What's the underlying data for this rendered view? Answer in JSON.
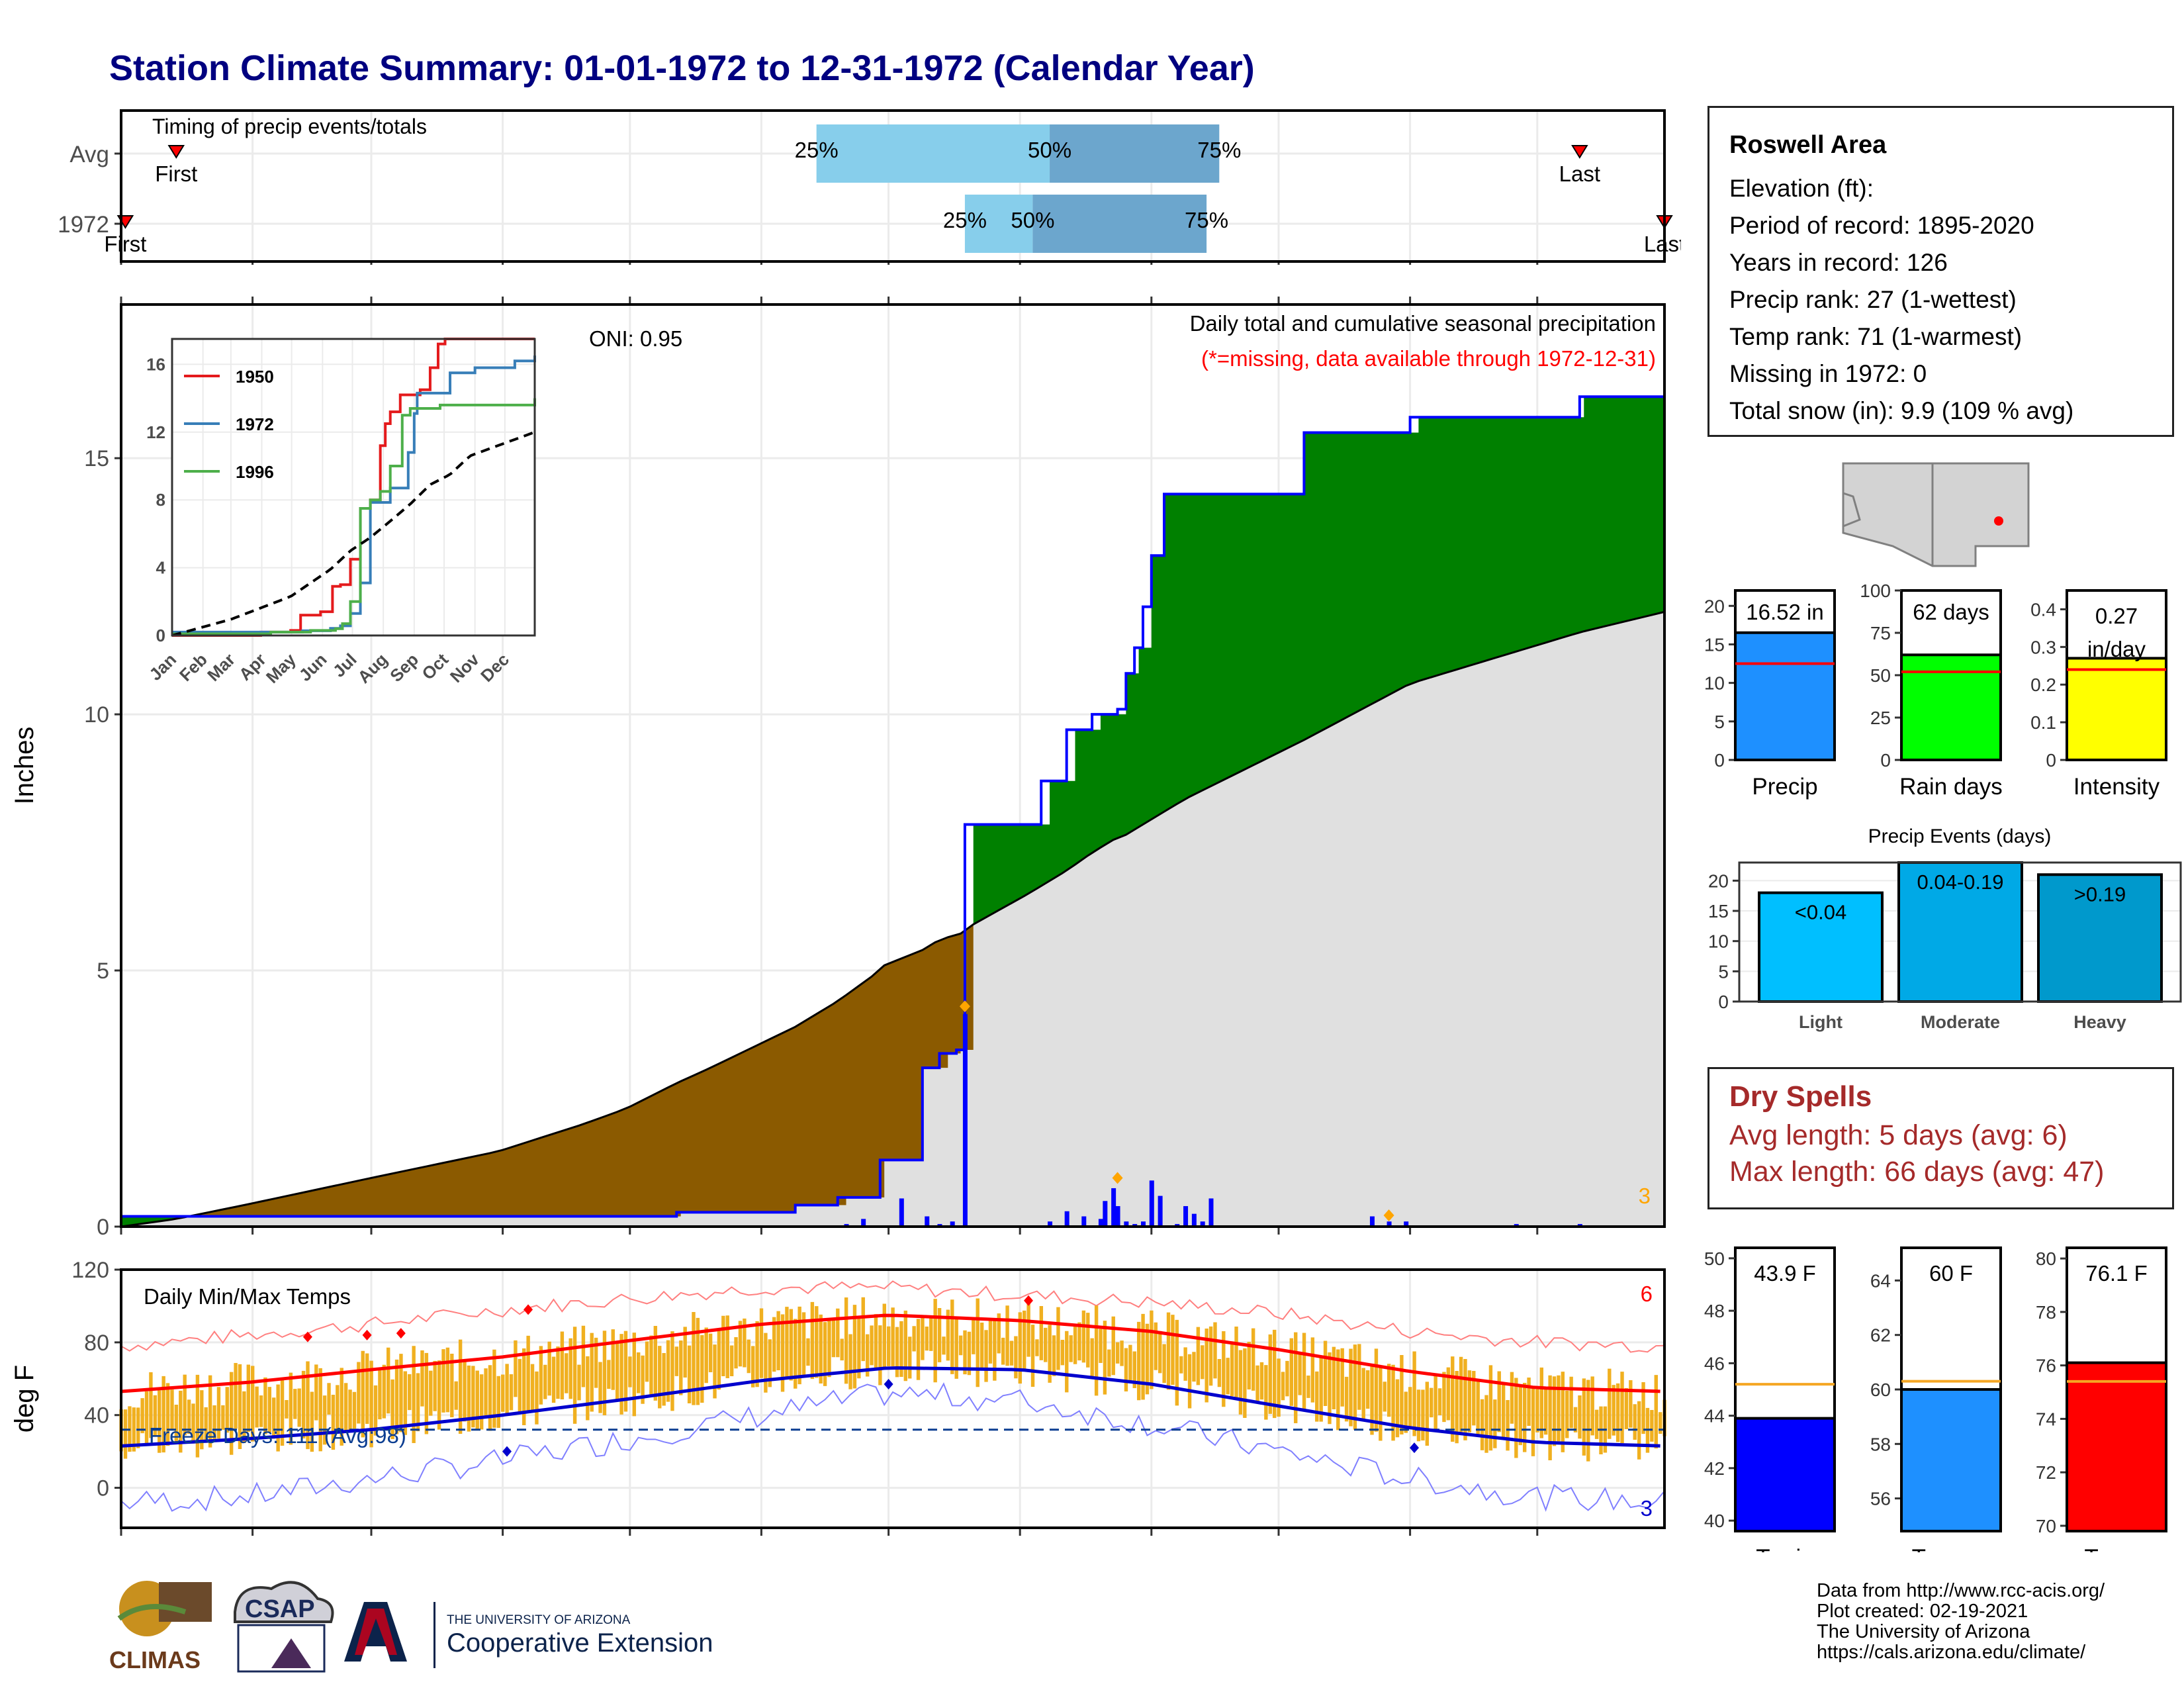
{
  "title": "Station Climate Summary: 01-01-1972 to 12-31-1972 (Calendar Year)",
  "timing": {
    "title": "Timing of precip events/totals",
    "rows": [
      {
        "label": "Avg",
        "first_label": "First",
        "last_label": "Last",
        "first_day": 14,
        "last_day": 345,
        "q25_day": 165,
        "q50_day": 220,
        "q75_day": 260,
        "q25_label": "25%",
        "q50_label": "50%",
        "q75_label": "75%"
      },
      {
        "label": "1972",
        "first_label": "First",
        "last_label": "Last",
        "first_day": 2,
        "last_day": 365,
        "q25_day": 200,
        "q50_day": 216,
        "q75_day": 257,
        "q25_label": "25%",
        "q50_label": "50%",
        "q75_label": "75%"
      }
    ]
  },
  "precip_panel": {
    "ylabel": "Inches",
    "oni": "ONI: 0.95",
    "subtitle": "Daily total and cumulative seasonal precipitation",
    "note": "(*=missing, data available through 1972-12-31)",
    "corner_label": "3",
    "yticks": [
      0,
      5,
      10,
      15
    ],
    "ylim": [
      0,
      18
    ],
    "colors": {
      "above": "#008000",
      "below": "#8b5a00",
      "avg_fill": "#e0e0e0",
      "line": "#0000ff"
    }
  },
  "inset": {
    "yticks": [
      0,
      4,
      8,
      12,
      16
    ],
    "months": [
      "Jan",
      "Feb",
      "Mar",
      "Apr",
      "May",
      "Jun",
      "Jul",
      "Aug",
      "Sep",
      "Oct",
      "Nov",
      "Dec"
    ],
    "legend": [
      {
        "name": "1950",
        "color": "#e41a1c"
      },
      {
        "name": "1972",
        "color": "#377eb8"
      },
      {
        "name": "1996",
        "color": "#4daf4a"
      }
    ]
  },
  "temp_panel": {
    "ylabel": "deg F",
    "title": "Daily Min/Max Temps",
    "freeze_label": "Freeze Days: 111 (Avg:98)",
    "top_right_label": "6",
    "bottom_right_label": "3",
    "yticks": [
      0,
      40,
      80,
      120
    ],
    "ylim": [
      -22,
      120
    ],
    "freeze_line": 32
  },
  "months": [
    "Jan",
    "Feb",
    "Mar",
    "Apr",
    "May",
    "Jun",
    "Jul",
    "Aug",
    "Sep",
    "Oct",
    "Nov",
    "Dec"
  ],
  "info": {
    "name": "Roswell Area",
    "lines": [
      "Elevation (ft):",
      "Period of record: 1895-2020",
      "Years in record: 126",
      "Precip rank: 27 (1-wettest)",
      "Temp rank: 71 (1-warmest)",
      "Missing in 1972: 0",
      "Total snow (in): 9.9 (109 % avg)"
    ]
  },
  "mini_bars": [
    {
      "label": "Precip",
      "value_label": "16.52 in",
      "value": 16.52,
      "avg": 12.5,
      "ymax": 22,
      "yticks": [
        0,
        5,
        10,
        15,
        20
      ],
      "color": "#1e90ff"
    },
    {
      "label": "Rain days",
      "value_label": "62 days",
      "value": 62,
      "avg": 52,
      "ymax": 100,
      "yticks": [
        0,
        25,
        50,
        75,
        100
      ],
      "color": "#00ff00"
    },
    {
      "label": "Intensity",
      "value_label": "0.27 in/day",
      "value": 0.27,
      "avg": 0.24,
      "ymax": 0.45,
      "yticks": [
        0.0,
        0.1,
        0.2,
        0.3,
        0.4
      ],
      "color": "#ffff00"
    }
  ],
  "precip_events": {
    "title": "Precip Events (days)",
    "ymax": 23,
    "yticks": [
      0,
      5,
      10,
      15,
      20
    ],
    "bars": [
      {
        "label": "Light",
        "value_label": "<0.04",
        "value": 18,
        "color": "#00bfff"
      },
      {
        "label": "Moderate",
        "value_label": "0.04-0.19",
        "value": 23,
        "color": "#00a9e6"
      },
      {
        "label": "Heavy",
        "value_label": ">0.19",
        "value": 21,
        "color": "#0099cc"
      }
    ]
  },
  "dry_spells": {
    "title": "Dry Spells",
    "avg_line": "Avg length: 5 days (avg: 6)",
    "max_line": "Max length: 66 days (avg: 47)"
  },
  "temp_bars": [
    {
      "label": "T-min",
      "value_label": "43.9 F",
      "value": 43.9,
      "avg": 45.2,
      "ymin": 39.6,
      "ymax": 50.4,
      "yticks": [
        40,
        42,
        44,
        46,
        48,
        50
      ],
      "color": "#0000ff"
    },
    {
      "label": "T-mean",
      "value_label": "60 F",
      "value": 60.0,
      "avg": 60.3,
      "ymin": 54.8,
      "ymax": 65.2,
      "yticks": [
        56,
        58,
        60,
        62,
        64
      ],
      "color": "#1e90ff"
    },
    {
      "label": "T-max",
      "value_label": "76.1 F",
      "value": 76.1,
      "avg": 75.4,
      "ymin": 69.8,
      "ymax": 80.4,
      "yticks": [
        70,
        72,
        74,
        76,
        78,
        80
      ],
      "color": "#ff0000"
    }
  ],
  "footer": [
    "Data from http://www.rcc-acis.org/",
    "Plot created: 02-19-2021",
    "The University of Arizona",
    "https://cals.arizona.edu/climate/"
  ],
  "logos": {
    "climas": "CLIMAS",
    "csap": "CSAP",
    "ua_small": "THE UNIVERSITY OF ARIZONA",
    "ua_large": "Cooperative Extension"
  },
  "chart_data": [
    {
      "type": "area",
      "title": "Daily total and cumulative seasonal precipitation",
      "ylabel": "Inches",
      "x": [
        1,
        14,
        30,
        60,
        90,
        110,
        120,
        132,
        140,
        160,
        170,
        180,
        181,
        190,
        194,
        198,
        199,
        200,
        201,
        202,
        215,
        218,
        220,
        224,
        230,
        236,
        238,
        240,
        242,
        244,
        247,
        248,
        250,
        252,
        280,
        305,
        345,
        365
      ],
      "series": [
        {
          "name": "1972",
          "values": [
            0.2,
            0.2,
            0.2,
            0.2,
            0.2,
            0.2,
            0.2,
            0.28,
            0.28,
            0.42,
            0.57,
            1.3,
            1.3,
            3.1,
            3.38,
            3.45,
            3.45,
            7.85,
            7.85,
            7.85,
            7.85,
            8.7,
            8.7,
            9.7,
            10.0,
            10.1,
            10.8,
            11.3,
            12.1,
            13.1,
            14.3,
            14.3,
            14.3,
            14.3,
            15.5,
            15.8,
            16.2,
            16.52
          ]
        },
        {
          "name": "Avg",
          "values": [
            0.0,
            0.15,
            0.42,
            0.95,
            1.47,
            2.0,
            2.3,
            2.8,
            3.1,
            3.9,
            4.4,
            5.0,
            5.1,
            5.4,
            5.6,
            5.7,
            5.72,
            5.78,
            5.85,
            5.9,
            6.5,
            6.65,
            6.75,
            6.95,
            7.3,
            7.6,
            7.65,
            7.75,
            7.85,
            7.95,
            8.1,
            8.15,
            8.25,
            8.35,
            9.5,
            10.6,
            11.6,
            12.0
          ]
        }
      ],
      "daily": {
        "x": [
          172,
          176,
          185,
          191,
          194,
          197,
          200,
          220,
          224,
          228,
          232,
          233,
          235,
          236,
          238,
          240,
          242,
          244,
          246,
          250,
          252,
          254,
          256,
          258,
          296,
          300,
          304,
          330,
          345
        ],
        "values": [
          0.05,
          0.15,
          0.55,
          0.2,
          0.05,
          0.1,
          4.15,
          0.1,
          0.3,
          0.2,
          0.15,
          0.5,
          0.75,
          0.4,
          0.1,
          0.05,
          0.1,
          0.9,
          0.6,
          0.05,
          0.4,
          0.25,
          0.1,
          0.55,
          0.2,
          0.1,
          0.1,
          0.05,
          0.05
        ]
      },
      "ylim": [
        0,
        18
      ]
    },
    {
      "type": "line",
      "title": "",
      "series": [
        {
          "name": "1950",
          "x": [
            1,
            90,
            120,
            130,
            150,
            162,
            170,
            180,
            190,
            200,
            210,
            215,
            220,
            230,
            240,
            250,
            260,
            268,
            275,
            365
          ],
          "values": [
            0,
            0.2,
            0.3,
            1.2,
            1.4,
            2.9,
            3.0,
            4.5,
            7.5,
            8.0,
            11.2,
            12.5,
            13.2,
            14.2,
            14.2,
            14.5,
            15.8,
            17.2,
            17.5,
            17.5
          ]
        },
        {
          "name": "1972",
          "x": [
            1,
            120,
            132,
            160,
            170,
            180,
            190,
            200,
            220,
            238,
            244,
            247,
            280,
            305,
            345,
            365
          ],
          "values": [
            0.2,
            0.2,
            0.28,
            0.42,
            0.57,
            1.3,
            3.1,
            7.85,
            8.7,
            10.8,
            13.1,
            14.3,
            15.5,
            15.8,
            16.2,
            16.52
          ]
        },
        {
          "name": "1996",
          "x": [
            1,
            100,
            140,
            165,
            172,
            180,
            190,
            200,
            210,
            220,
            232,
            240,
            270,
            365
          ],
          "values": [
            0.1,
            0.2,
            0.3,
            0.4,
            0.7,
            2.0,
            7.5,
            8.0,
            8.5,
            10.0,
            13.0,
            13.4,
            13.6,
            14.0
          ]
        },
        {
          "name": "Avg",
          "x": [
            1,
            60,
            120,
            160,
            180,
            200,
            220,
            240,
            260,
            280,
            300,
            365
          ],
          "values": [
            0,
            0.95,
            2.3,
            3.9,
            5.0,
            5.78,
            6.75,
            7.75,
            8.9,
            9.5,
            10.6,
            12.0
          ]
        }
      ],
      "ylim": [
        0,
        17.5
      ]
    },
    {
      "type": "line",
      "title": "Daily Min/Max Temps",
      "ylabel": "deg F",
      "x": [
        1,
        31,
        60,
        91,
        121,
        152,
        182,
        213,
        244,
        274,
        305,
        335,
        365
      ],
      "series": [
        {
          "name": "Avg max",
          "values": [
            53,
            58,
            65,
            72,
            81,
            90,
            95,
            92,
            86,
            76,
            64,
            55,
            53
          ]
        },
        {
          "name": "Avg min",
          "values": [
            23,
            27,
            32,
            40,
            49,
            59,
            66,
            65,
            57,
            45,
            33,
            25,
            23
          ]
        },
        {
          "name": "Record max",
          "values": [
            78,
            84,
            90,
            98,
            104,
            110,
            110,
            106,
            102,
            96,
            86,
            80,
            78
          ]
        },
        {
          "name": "Record min",
          "values": [
            -8,
            -5,
            5,
            15,
            27,
            40,
            52,
            48,
            35,
            20,
            5,
            -5,
            -8
          ]
        }
      ],
      "ylim": [
        -22,
        120
      ]
    }
  ]
}
